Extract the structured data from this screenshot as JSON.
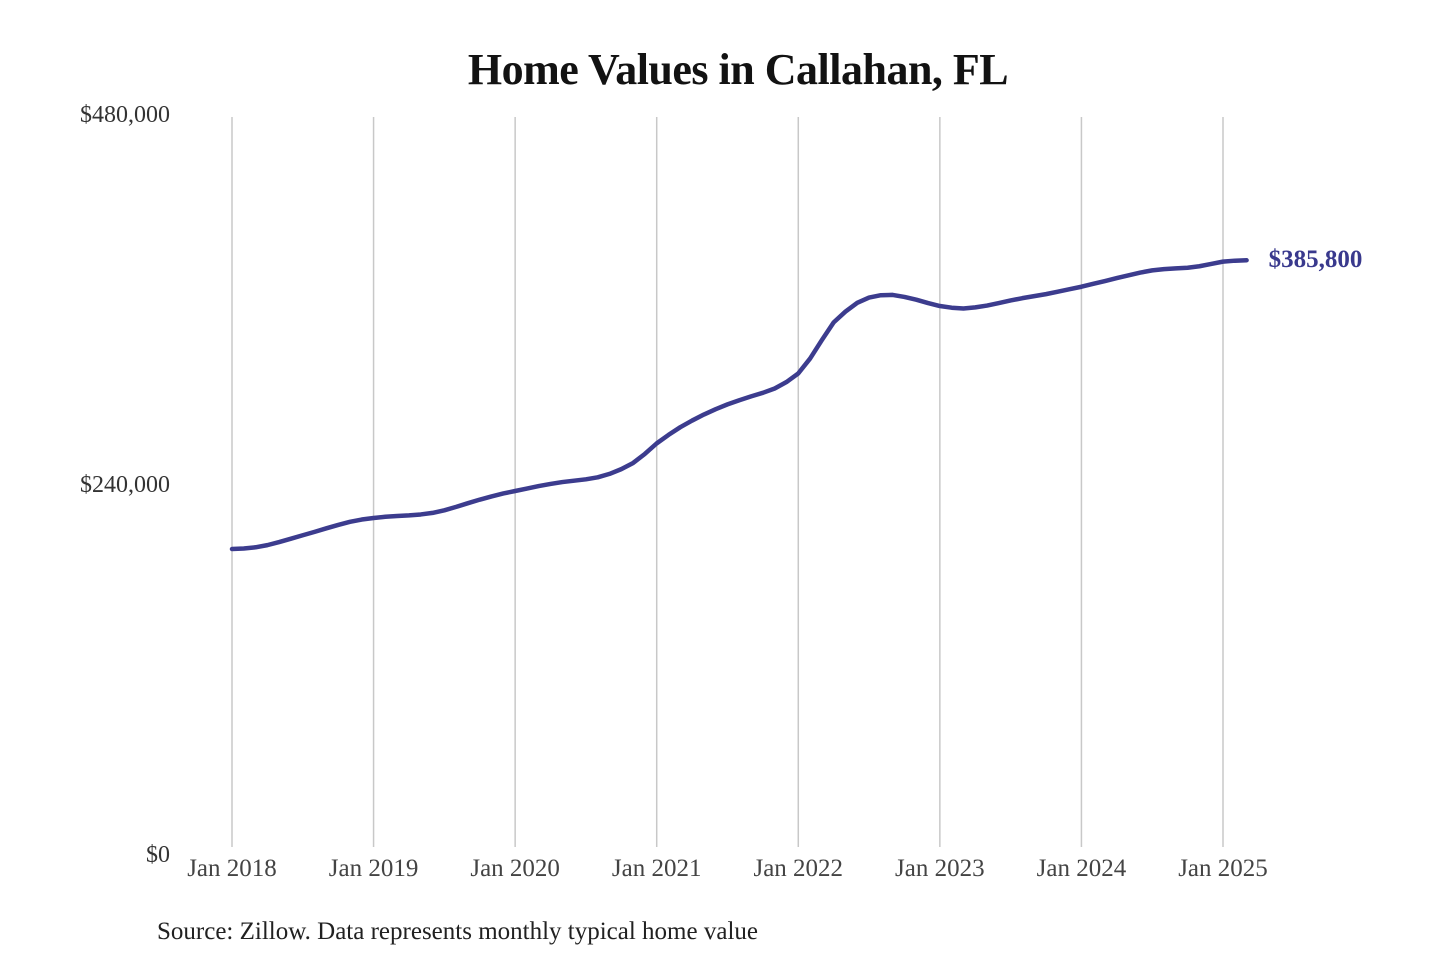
{
  "title": "Home Values in Callahan, FL",
  "source_note": "Source: Zillow. Data represents monthly typical home value",
  "colors": {
    "line": "#3c3c8e",
    "end_label": "#39398d",
    "grid": "#c8c8c8",
    "title": "#121212",
    "y_tick": "#333333",
    "x_tick": "#444444",
    "source": "#212121",
    "background": "#ffffff"
  },
  "chart_data": {
    "type": "line",
    "title": "Home Values in Callahan, FL",
    "xlabel": "",
    "ylabel": "",
    "ylim": [
      0,
      480000
    ],
    "grid": "vertical-only",
    "legend": "none",
    "y_ticks": [
      {
        "label": "$480,000",
        "value": 480000
      },
      {
        "label": "$240,000",
        "value": 240000
      },
      {
        "label": "$0",
        "value": 0
      }
    ],
    "x_ticks": [
      {
        "label": "Jan 2018",
        "month_index": 0
      },
      {
        "label": "Jan 2019",
        "month_index": 12
      },
      {
        "label": "Jan 2020",
        "month_index": 24
      },
      {
        "label": "Jan 2021",
        "month_index": 36
      },
      {
        "label": "Jan 2022",
        "month_index": 48
      },
      {
        "label": "Jan 2023",
        "month_index": 60
      },
      {
        "label": "Jan 2024",
        "month_index": 72
      },
      {
        "label": "Jan 2025",
        "month_index": 84
      }
    ],
    "series": [
      {
        "name": "Monthly typical home value",
        "start_month": "2018-01",
        "end_month": "2025-03",
        "values": [
          198500,
          198800,
          199600,
          201000,
          203000,
          205200,
          207400,
          209600,
          211900,
          214100,
          216100,
          217600,
          218600,
          219400,
          219900,
          220300,
          220900,
          221900,
          223600,
          225800,
          228200,
          230500,
          232600,
          234500,
          236100,
          237700,
          239300,
          240700,
          241900,
          242800,
          243700,
          245000,
          247200,
          250300,
          254300,
          260200,
          267000,
          272500,
          277500,
          281800,
          285700,
          289200,
          292300,
          295000,
          297500,
          299800,
          302600,
          306800,
          312400,
          322000,
          334000,
          345500,
          352500,
          358200,
          361600,
          363100,
          363300,
          362000,
          360200,
          358000,
          356100,
          355000,
          354500,
          355200,
          356400,
          358000,
          359700,
          361200,
          362500,
          363800,
          365400,
          367000,
          368600,
          370500,
          372300,
          374200,
          376000,
          377800,
          379200,
          380000,
          380500,
          380900,
          381900,
          383400,
          384900,
          385500,
          385800
        ]
      }
    ],
    "end_annotation": {
      "text": "$385,800",
      "value": 385800
    }
  }
}
